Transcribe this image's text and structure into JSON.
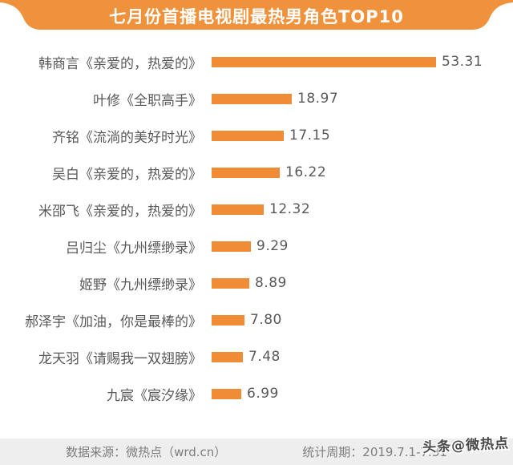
{
  "title": "七月份首播电视剧最热男角色TOP10",
  "colors": {
    "accent": "#F0913C",
    "bar": "#EF8C35",
    "label_text": "#595959",
    "footer_bg": "#EEEEEE",
    "footer_text": "#7E7E7E",
    "title_text": "#FFFFFF"
  },
  "chart_data": {
    "type": "bar",
    "orientation": "horizontal",
    "title": "七月份首播电视剧最热男角色TOP10",
    "categories": [
      "韩商言《亲爱的，热爱的》",
      "叶修《全职高手》",
      "齐铭《流淌的美好时光》",
      "吴白《亲爱的，热爱的》",
      "米邵飞《亲爱的，热爱的》",
      "吕归尘《九州缥缈录》",
      "姬野《九州缥缈录》",
      "郝泽宇《加油，你是最棒的》",
      "龙天羽《请赐我一双翅膀》",
      "九宸《宸汐缘》"
    ],
    "values": [
      53.31,
      18.97,
      17.15,
      16.22,
      12.32,
      9.29,
      8.89,
      7.8,
      7.48,
      6.99
    ],
    "value_labels": [
      "53.31",
      "18.97",
      "17.15",
      "16.22",
      "12.32",
      "9.29",
      "8.89",
      "7.80",
      "7.48",
      "6.99"
    ],
    "xlim": [
      0,
      56
    ],
    "grid": false,
    "legend": "none",
    "bar_color": "#EF8C35",
    "value_label_position": "end-of-bar"
  },
  "footer": {
    "source_label": "数据来源：微热点（wrd.cn）",
    "period_label": "统计周期：2019.7.1-7.31"
  },
  "watermark": "头条@微热点"
}
